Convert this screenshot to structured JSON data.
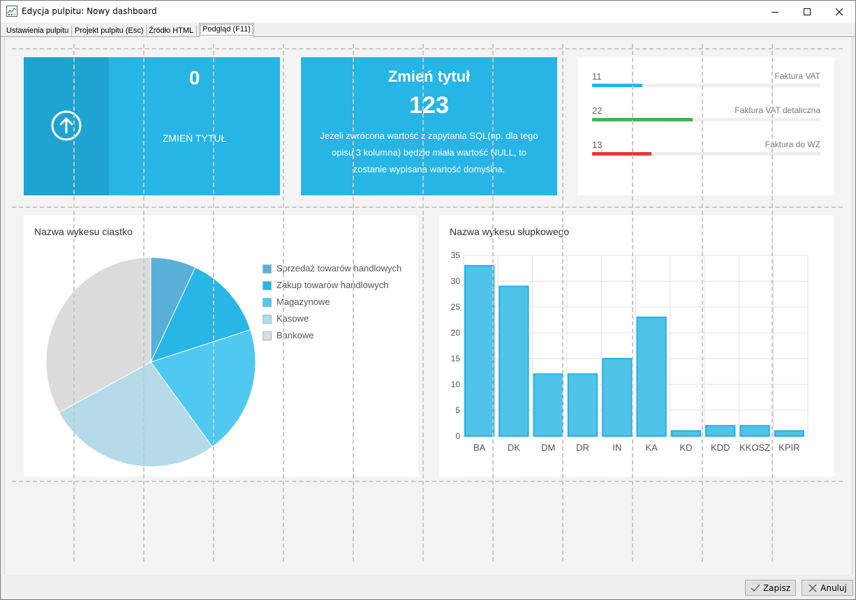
{
  "window": {
    "title": "Edycja pulpitu: Nowy dashboard",
    "controls": [
      "minimize-icon",
      "maximize-icon",
      "close-icon"
    ]
  },
  "tabs": [
    {
      "label": "Ustawienia pulpitu",
      "active": false
    },
    {
      "label": "Projekt pulpitu (Esc)",
      "active": false
    },
    {
      "label": "Źródło HTML",
      "active": false
    },
    {
      "label": "Podgląd (F11)",
      "active": true
    }
  ],
  "tile1": {
    "icon": "arrow-up-circle-icon",
    "value": "0",
    "label": "ZMIEŃ TYTUŁ",
    "accent": "#26b5e5",
    "accent_dark": "#1ea4d1"
  },
  "tile2": {
    "title": "Zmień tytuł",
    "value": "123",
    "description": "Jeżeli zwrócona wartość z zapytania SQL(np. dla tego opisu 3 kolumna) będzie miała wartość NULL, to zostanie wypisana wartość domyślna."
  },
  "progress": {
    "items": [
      {
        "value": "11",
        "label": "Faktura VAT",
        "fraction": 0.22,
        "color": "#26b5e5"
      },
      {
        "value": "22",
        "label": "Faktura VAT detaliczna",
        "fraction": 0.44,
        "color": "#4caf50"
      },
      {
        "value": "13",
        "label": "Faktura do WZ",
        "fraction": 0.26,
        "color": "#e53935"
      }
    ]
  },
  "pie": {
    "title": "Nazwa wykesu ciastko",
    "legend": [
      {
        "label": "Sprzedaż towarów handlowych",
        "color": "#5aafd9"
      },
      {
        "label": "Zakup towarów handlowych",
        "color": "#27b6e5"
      },
      {
        "label": "Magazynowe",
        "color": "#4fc9f0"
      },
      {
        "label": "Kasowe",
        "color": "#b5dbe9"
      },
      {
        "label": "Bankowe",
        "color": "#dcdcdc"
      }
    ]
  },
  "bar": {
    "title": "Nazwa wykesu słupkowego"
  },
  "chart_data": [
    {
      "type": "pie",
      "title": "Nazwa wykesu ciastko",
      "categories": [
        "Sprzedaż towarów handlowych",
        "Zakup towarów handlowych",
        "Magazynowe",
        "Kasowe",
        "Bankowe"
      ],
      "values": [
        7,
        13,
        20,
        27,
        33
      ],
      "colors": [
        "#5aafd9",
        "#27b6e5",
        "#4fc9f0",
        "#b5dbe9",
        "#dcdcdc"
      ],
      "legend": "right"
    },
    {
      "type": "bar",
      "title": "Nazwa wykesu słupkowego",
      "categories": [
        "BA",
        "DK",
        "DM",
        "DR",
        "IN",
        "KA",
        "KD",
        "KDD",
        "KKOSZ",
        "KPIR"
      ],
      "values": [
        33,
        29,
        12,
        12,
        15,
        23,
        1,
        2,
        2,
        1
      ],
      "ylim": [
        0,
        35
      ],
      "yticks": [
        0,
        5,
        10,
        15,
        20,
        25,
        30,
        35
      ],
      "grid": true,
      "color": "#4fc3e9",
      "stroke": "#27b1e0"
    }
  ],
  "footer": {
    "save_label": "Zapisz",
    "cancel_label": "Anuluj"
  }
}
